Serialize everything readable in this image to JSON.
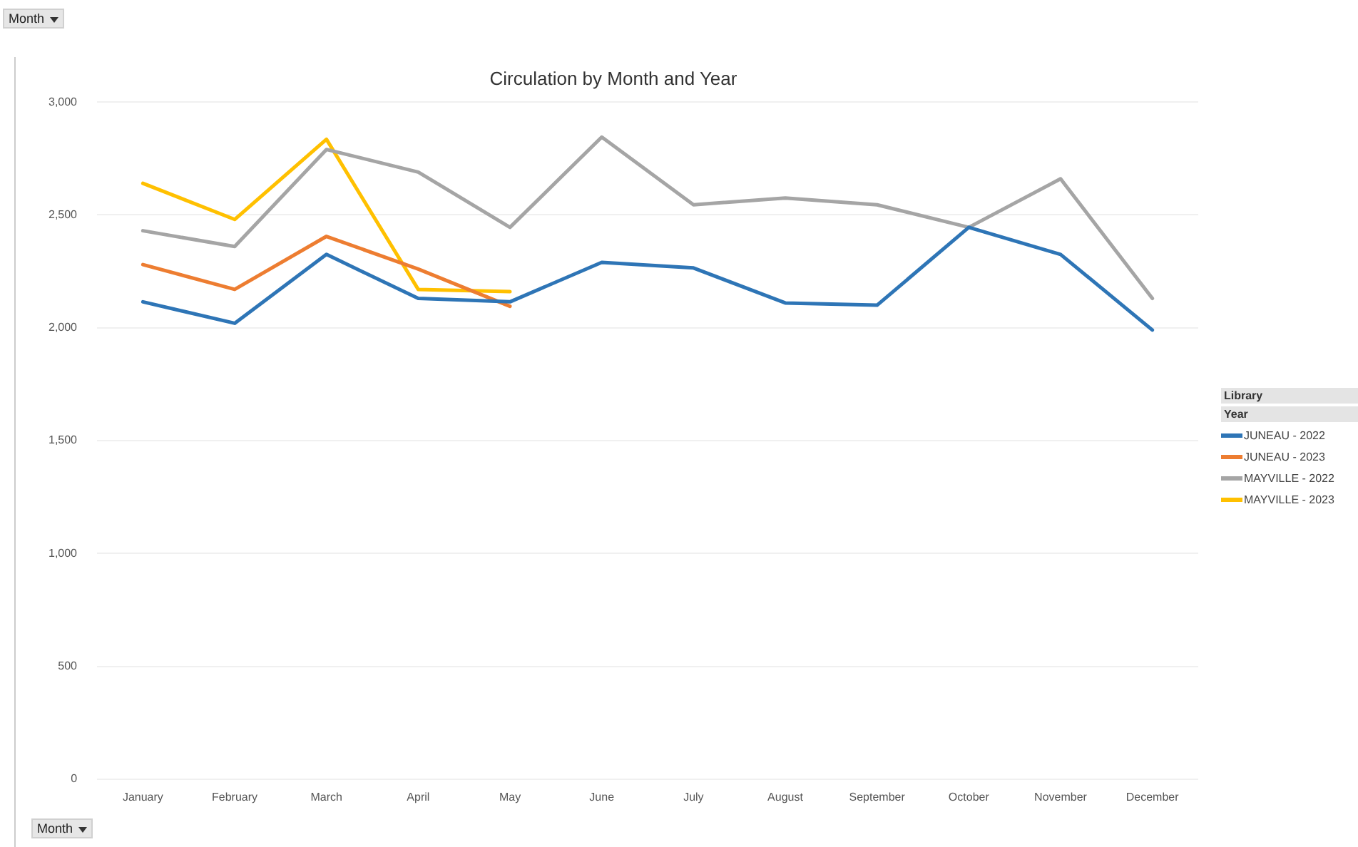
{
  "chart_data": {
    "type": "line",
    "title": "Circulation by Month and Year",
    "categories": [
      "January",
      "February",
      "March",
      "April",
      "May",
      "June",
      "July",
      "August",
      "September",
      "October",
      "November",
      "December"
    ],
    "series": [
      {
        "name": "JUNEAU - 2022",
        "color": "#2e75b6",
        "values": [
          2115,
          2020,
          2325,
          2130,
          2115,
          2290,
          2265,
          2110,
          2100,
          2445,
          2325,
          1990
        ]
      },
      {
        "name": "JUNEAU - 2023",
        "color": "#ed7d31",
        "values": [
          2280,
          2170,
          2405,
          2260,
          2095,
          null,
          null,
          null,
          null,
          null,
          null,
          null
        ]
      },
      {
        "name": "MAYVILLE - 2022",
        "color": "#a5a5a5",
        "values": [
          2430,
          2360,
          2790,
          2690,
          2445,
          2845,
          2545,
          2575,
          2545,
          2445,
          2660,
          2130
        ]
      },
      {
        "name": "MAYVILLE - 2023",
        "color": "#ffc000",
        "values": [
          2640,
          2480,
          2835,
          2170,
          2160,
          null,
          null,
          null,
          null,
          null,
          null,
          null
        ]
      }
    ],
    "ylim": [
      0,
      3000
    ],
    "yticks": [
      {
        "value": 0,
        "label": "0"
      },
      {
        "value": 500,
        "label": "500"
      },
      {
        "value": 1000,
        "label": "1,000"
      },
      {
        "value": 1500,
        "label": "1,500"
      },
      {
        "value": 2000,
        "label": "2,000"
      },
      {
        "value": 2500,
        "label": "2,500"
      },
      {
        "value": 3000,
        "label": "3,000"
      }
    ],
    "grid": "y",
    "legend": "right",
    "marker": "none",
    "line_style": "solid",
    "annotations": [
      "Month",
      "Month",
      "Library",
      "Year"
    ]
  }
}
